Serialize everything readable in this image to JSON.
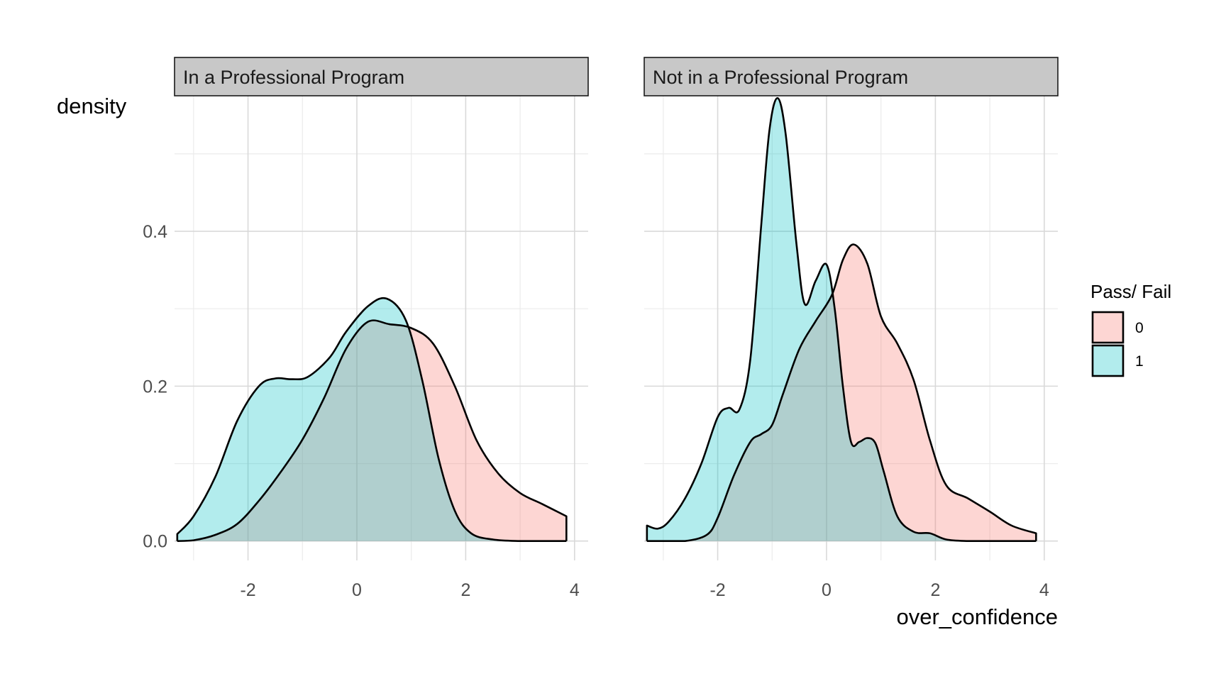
{
  "chart_data": {
    "type": "area",
    "subtype": "density",
    "xlabel": "over_confidence",
    "ylabel": "density",
    "xlim": [
      -3.35,
      4.25
    ],
    "ylim": [
      -0.025,
      0.575
    ],
    "x_ticks": [
      -2,
      0,
      2,
      4
    ],
    "x_tick_labels": [
      "-2",
      "0",
      "2",
      "4"
    ],
    "y_ticks": [
      0.0,
      0.2,
      0.4
    ],
    "y_tick_labels": [
      "0.0",
      "0.2",
      "0.4"
    ],
    "grid": true,
    "fill_alpha": 0.3,
    "legend": {
      "title": "Pass/ Fail",
      "position": "right",
      "entries": [
        {
          "label": "0",
          "color": "#F8766D"
        },
        {
          "label": "1",
          "color": "#00BFC4"
        }
      ]
    },
    "panels": [
      {
        "strip": "In a Professional Program",
        "series": [
          {
            "name": "0",
            "color": "#F8766D",
            "x": [
              -3.3,
              -3.0,
              -2.6,
              -2.2,
              -1.8,
              -1.4,
              -1.0,
              -0.6,
              -0.2,
              0.2,
              0.6,
              1.0,
              1.4,
              1.8,
              2.2,
              2.6,
              3.0,
              3.4,
              3.85
            ],
            "y": [
              0.0,
              0.001,
              0.008,
              0.022,
              0.052,
              0.089,
              0.131,
              0.185,
              0.248,
              0.283,
              0.28,
              0.275,
              0.255,
              0.2,
              0.13,
              0.087,
              0.062,
              0.048,
              0.032
            ]
          },
          {
            "name": "1",
            "color": "#00BFC4",
            "x": [
              -3.3,
              -3.0,
              -2.6,
              -2.2,
              -1.8,
              -1.5,
              -1.2,
              -0.9,
              -0.5,
              -0.2,
              0.2,
              0.55,
              0.9,
              1.2,
              1.5,
              1.8,
              2.1,
              2.5,
              3.0,
              3.5,
              3.85
            ],
            "y": [
              0.009,
              0.032,
              0.083,
              0.155,
              0.2,
              0.21,
              0.209,
              0.212,
              0.237,
              0.27,
              0.303,
              0.313,
              0.285,
              0.208,
              0.107,
              0.039,
              0.01,
              0.002,
              0.0,
              0.0,
              0.0
            ]
          }
        ]
      },
      {
        "strip": "Not in a Professional Program",
        "series": [
          {
            "name": "0",
            "color": "#F8766D",
            "x": [
              -3.3,
              -3.0,
              -2.6,
              -2.2,
              -2.0,
              -1.7,
              -1.4,
              -1.2,
              -1.0,
              -0.8,
              -0.5,
              -0.2,
              0.1,
              0.3,
              0.5,
              0.75,
              1.0,
              1.3,
              1.6,
              1.9,
              2.2,
              2.6,
              3.0,
              3.4,
              3.85
            ],
            "y": [
              0.0,
              0.0,
              0.0,
              0.008,
              0.03,
              0.085,
              0.128,
              0.138,
              0.15,
              0.19,
              0.248,
              0.284,
              0.318,
              0.363,
              0.383,
              0.358,
              0.29,
              0.255,
              0.208,
              0.13,
              0.072,
              0.055,
              0.038,
              0.02,
              0.01
            ]
          },
          {
            "name": "1",
            "color": "#00BFC4",
            "x": [
              -3.3,
              -3.1,
              -2.9,
              -2.6,
              -2.3,
              -2.0,
              -1.8,
              -1.6,
              -1.4,
              -1.2,
              -1.05,
              -0.9,
              -0.75,
              -0.55,
              -0.4,
              -0.2,
              0.0,
              0.15,
              0.3,
              0.45,
              0.6,
              0.75,
              0.9,
              1.05,
              1.3,
              1.6,
              1.9,
              2.2,
              2.6,
              3.0,
              3.4,
              3.85
            ],
            "y": [
              0.02,
              0.016,
              0.025,
              0.055,
              0.1,
              0.16,
              0.172,
              0.17,
              0.235,
              0.408,
              0.53,
              0.572,
              0.525,
              0.382,
              0.306,
              0.336,
              0.357,
              0.3,
              0.2,
              0.128,
              0.128,
              0.133,
              0.126,
              0.09,
              0.032,
              0.012,
              0.01,
              0.002,
              0.0,
              0.0,
              0.0,
              0.0
            ]
          }
        ]
      }
    ]
  }
}
